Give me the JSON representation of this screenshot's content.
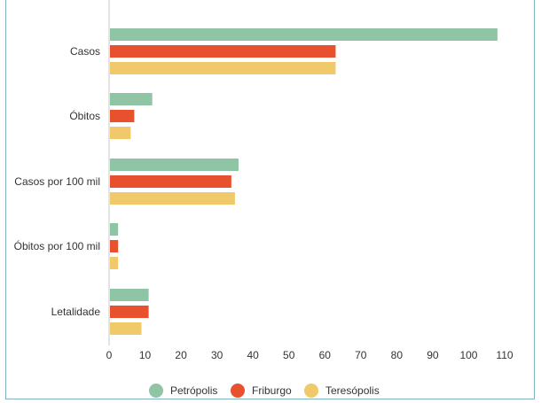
{
  "chart_data": {
    "type": "bar",
    "orientation": "horizontal",
    "categories": [
      "Casos",
      "Óbitos",
      "Casos por 100 mil",
      "Óbitos por 100 mil",
      "Letalidade"
    ],
    "series": [
      {
        "name": "Petrópolis",
        "color": "#8fc4a4",
        "values": [
          108,
          12,
          36,
          2.5,
          11
        ]
      },
      {
        "name": "Friburgo",
        "color": "#e8512e",
        "values": [
          63,
          7,
          34,
          2.5,
          11
        ]
      },
      {
        "name": "Teresópolis",
        "color": "#efc96a",
        "values": [
          63,
          6,
          35,
          2.5,
          9
        ]
      }
    ],
    "xlim": [
      0,
      110
    ],
    "xticks": [
      "0",
      "10",
      "20",
      "30",
      "40",
      "50",
      "60",
      "70",
      "80",
      "90",
      "100",
      "110"
    ],
    "grid": false,
    "legend_position": "bottom"
  }
}
